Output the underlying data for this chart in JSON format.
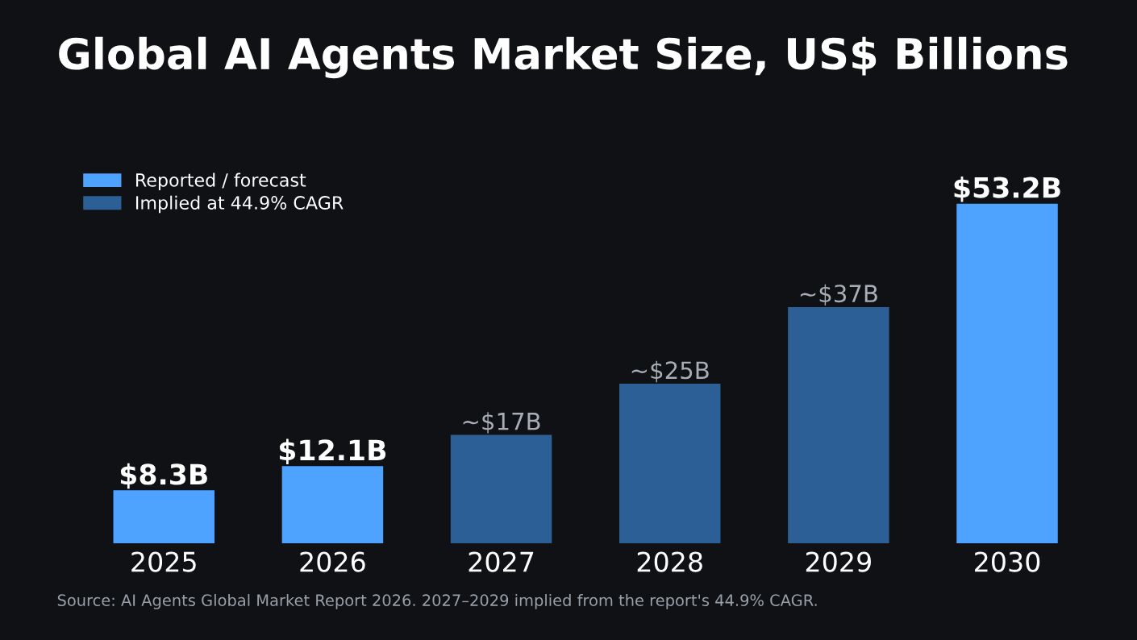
{
  "chart_data": {
    "type": "bar",
    "title": "Global AI Agents Market Size, US$ Billions",
    "categories": [
      "2025",
      "2026",
      "2027",
      "2028",
      "2029",
      "2030"
    ],
    "series": [
      {
        "name": "Reported / forecast",
        "color": "#4da3ff",
        "values": [
          8.3,
          12.1,
          null,
          null,
          null,
          53.2
        ],
        "value_labels": [
          "$8.3B",
          "$12.1B",
          null,
          null,
          null,
          "$53.2B"
        ]
      },
      {
        "name": "Implied at 44.9% CAGR",
        "color": "#2c5f95",
        "values": [
          null,
          null,
          17,
          25,
          37,
          null
        ],
        "value_labels": [
          null,
          null,
          "~$17B",
          "~$25B",
          "~$37B",
          null
        ]
      }
    ],
    "legend": "top left",
    "grid": false,
    "annotations": [
      "Source: AI Agents Global Market Report 2026. 2027–2029 implied from the report's 44.9% CAGR."
    ]
  }
}
